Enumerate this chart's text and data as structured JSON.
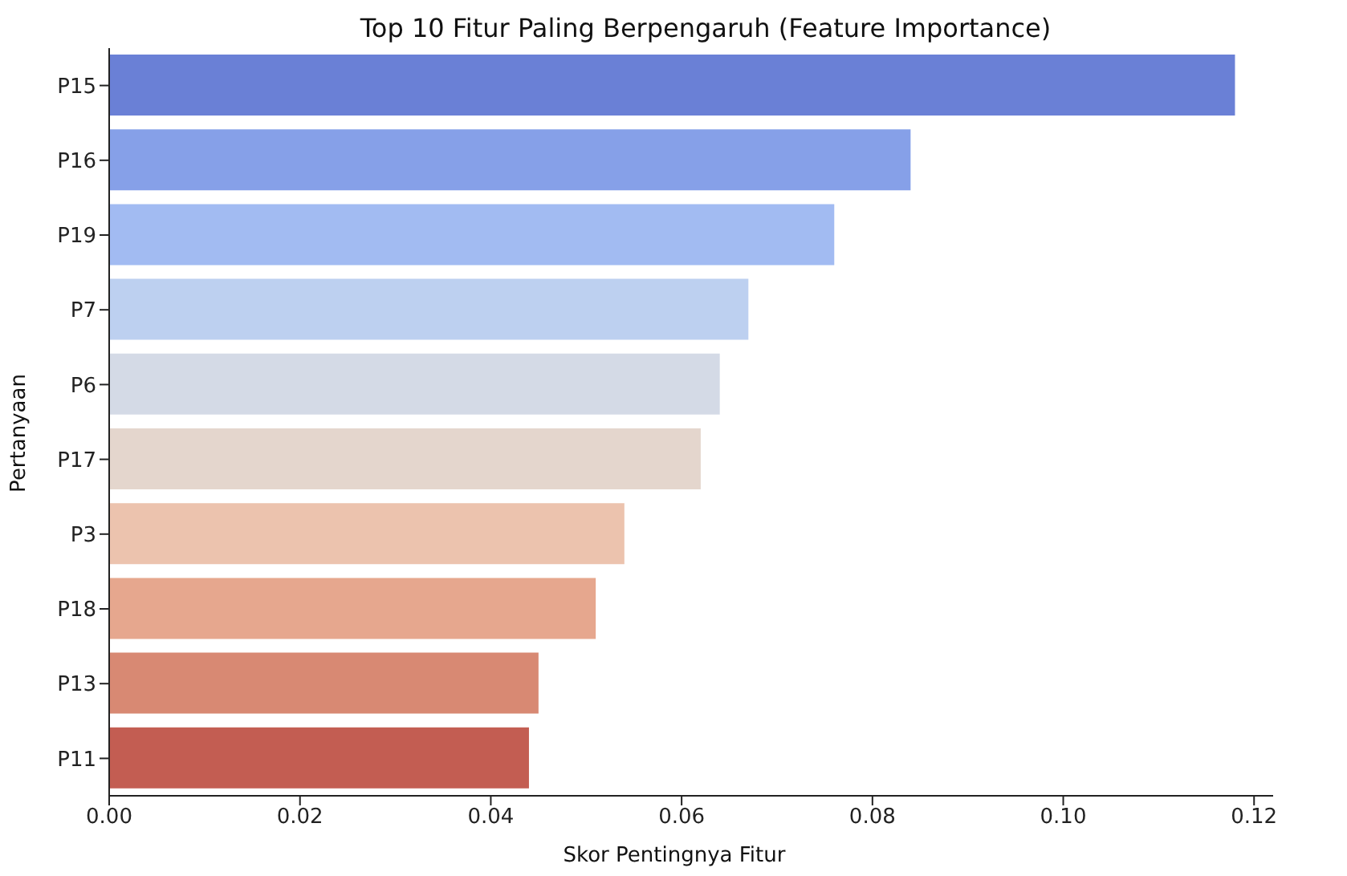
{
  "chart_data": {
    "type": "bar",
    "orientation": "horizontal",
    "title": "Top 10 Fitur Paling Berpengaruh (Feature Importance)",
    "xlabel": "Skor Pentingnya Fitur",
    "ylabel": "Pertanyaan",
    "categories": [
      "P15",
      "P16",
      "P19",
      "P7",
      "P6",
      "P17",
      "P3",
      "P18",
      "P13",
      "P11"
    ],
    "values": [
      0.118,
      0.084,
      0.076,
      0.067,
      0.064,
      0.062,
      0.054,
      0.051,
      0.045,
      0.044
    ],
    "colors": [
      "#6a80d6",
      "#86a0e8",
      "#a2bbf2",
      "#bdd0f0",
      "#d4dae6",
      "#e4d6cd",
      "#ecc3ae",
      "#e6a78e",
      "#d88973",
      "#c35d52"
    ],
    "xlim": [
      0,
      0.122
    ],
    "xticks": [
      {
        "value": 0,
        "label": "0.00"
      },
      0.02,
      0.04,
      0.06,
      0.08,
      {
        "value": 0.1,
        "label": "0.10"
      },
      0.12
    ],
    "grid": false,
    "legend": false
  }
}
